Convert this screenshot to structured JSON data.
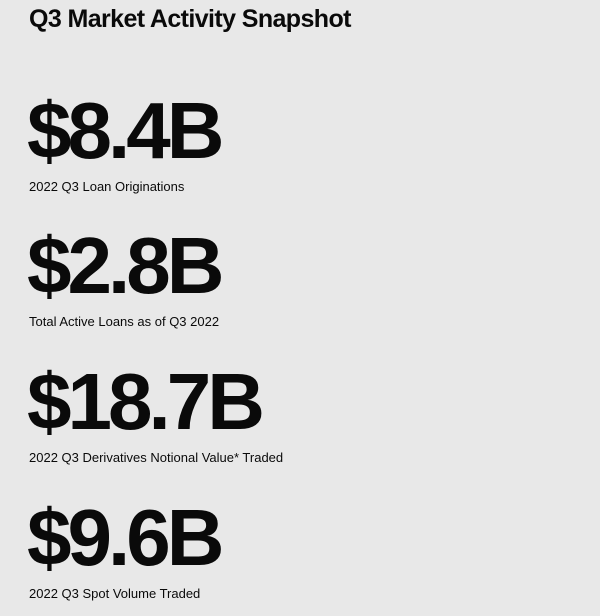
{
  "title": "Q3 Market Activity Snapshot",
  "stats": [
    {
      "value": "$8.4B",
      "label": "2022 Q3 Loan Originations"
    },
    {
      "value": "$2.8B",
      "label": "Total Active Loans as of Q3 2022"
    },
    {
      "value": "$18.7B",
      "label": "2022 Q3 Derivatives Notional Value* Traded"
    },
    {
      "value": "$9.6B",
      "label": "2022 Q3 Spot Volume Traded"
    }
  ]
}
